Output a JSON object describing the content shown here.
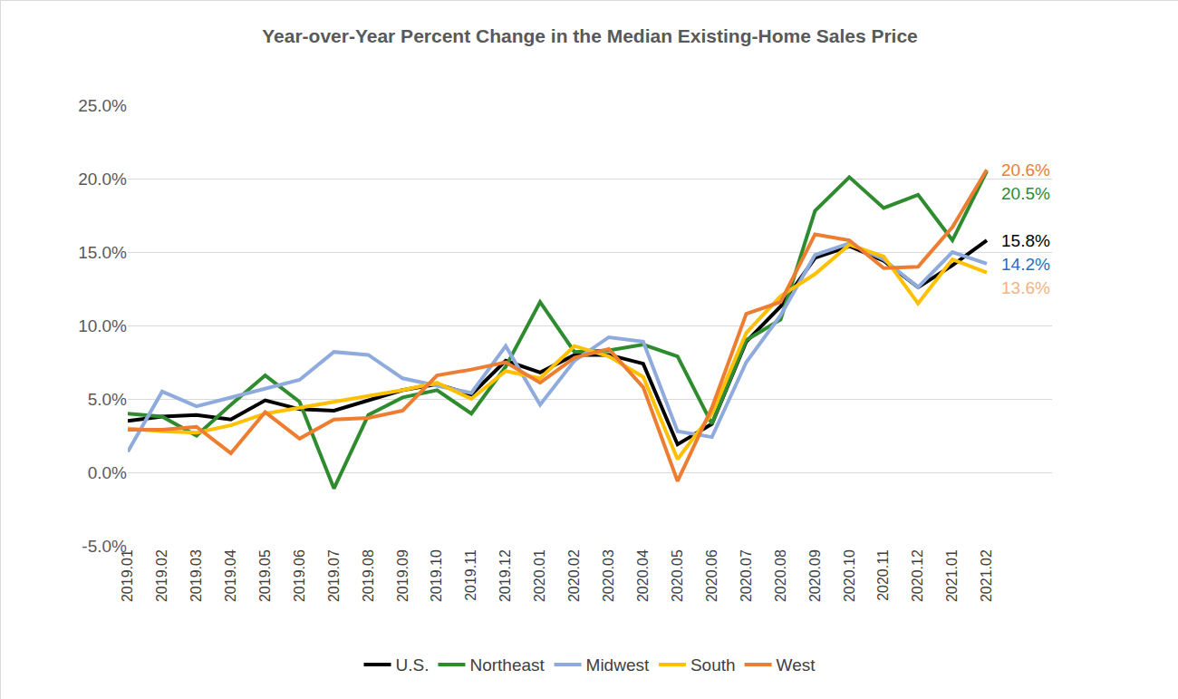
{
  "chart_data": {
    "type": "line",
    "title": "Year-over-Year Percent Change in the Median Existing-Home Sales Price",
    "categories": [
      "2019.01",
      "2019.02",
      "2019.03",
      "2019.04",
      "2019.05",
      "2019.06",
      "2019.07",
      "2019.08",
      "2019.09",
      "2019.10",
      "2019.11",
      "2019.12",
      "2020.01",
      "2020.02",
      "2020.03",
      "2020.04",
      "2020.05",
      "2020.06",
      "2020.07",
      "2020.08",
      "2020.09",
      "2020.10",
      "2020.11",
      "2020.12",
      "2021.01",
      "2021.02"
    ],
    "series": [
      {
        "name": "U.S.",
        "color": "#000000",
        "values": [
          3.5,
          3.8,
          3.9,
          3.6,
          4.9,
          4.3,
          4.2,
          4.9,
          5.6,
          6.0,
          5.3,
          7.6,
          6.8,
          8.0,
          8.0,
          7.4,
          1.9,
          3.3,
          8.9,
          11.3,
          14.6,
          15.4,
          14.4,
          12.6,
          14.1,
          15.8
        ]
      },
      {
        "name": "Northeast",
        "color": "#2e8b2e",
        "values": [
          4.0,
          3.8,
          2.5,
          4.6,
          6.6,
          4.8,
          -1.1,
          3.9,
          5.1,
          5.6,
          4.0,
          7.2,
          11.6,
          8.2,
          8.3,
          8.7,
          7.9,
          3.3,
          9.0,
          10.4,
          17.8,
          20.1,
          18.0,
          18.9,
          15.8,
          20.5
        ]
      },
      {
        "name": "Midwest",
        "color": "#8faadc",
        "values": [
          1.4,
          5.5,
          4.5,
          5.1,
          5.7,
          6.3,
          8.2,
          8.0,
          6.4,
          5.9,
          5.4,
          8.6,
          4.6,
          7.6,
          9.2,
          8.9,
          2.8,
          2.4,
          7.5,
          10.7,
          14.8,
          15.6,
          14.5,
          12.6,
          15.0,
          14.2
        ]
      },
      {
        "name": "South",
        "color": "#ffc000",
        "values": [
          3.0,
          2.8,
          2.7,
          3.2,
          4.0,
          4.4,
          4.8,
          5.2,
          5.6,
          6.1,
          5.0,
          6.9,
          6.4,
          8.6,
          7.9,
          6.5,
          0.9,
          4.0,
          9.5,
          12.0,
          13.5,
          15.5,
          14.7,
          11.5,
          14.5,
          13.6
        ]
      },
      {
        "name": "West",
        "color": "#ed7d31",
        "values": [
          2.9,
          2.9,
          3.1,
          1.3,
          4.1,
          2.3,
          3.6,
          3.7,
          4.2,
          6.6,
          7.0,
          7.5,
          6.1,
          7.8,
          8.4,
          5.8,
          -0.6,
          4.4,
          10.8,
          11.6,
          16.2,
          15.8,
          13.9,
          14.0,
          16.7,
          20.6
        ]
      }
    ],
    "annotations": [
      {
        "text": "20.6%",
        "series": "West",
        "color": "#ed7d31"
      },
      {
        "text": "20.5%",
        "series": "Northeast",
        "color": "#2e8b2e"
      },
      {
        "text": "15.8%",
        "series": "U.S.",
        "color": "#000000"
      },
      {
        "text": "14.2%",
        "series": "Midwest",
        "color": "#1f6fc5"
      },
      {
        "text": "13.6%",
        "series": "South",
        "color": "#f4b183"
      }
    ],
    "ylim": [
      -5,
      25
    ],
    "yticks": [
      {
        "value": -5,
        "label": "-5.0%"
      },
      {
        "value": 0,
        "label": "0.0%"
      },
      {
        "value": 5,
        "label": "5.0%"
      },
      {
        "value": 10,
        "label": "10.0%"
      },
      {
        "value": 15,
        "label": "15.0%"
      },
      {
        "value": 20,
        "label": "20.0%"
      },
      {
        "value": 25,
        "label": "25.0%"
      }
    ],
    "grid": true,
    "legend": "bottom"
  }
}
